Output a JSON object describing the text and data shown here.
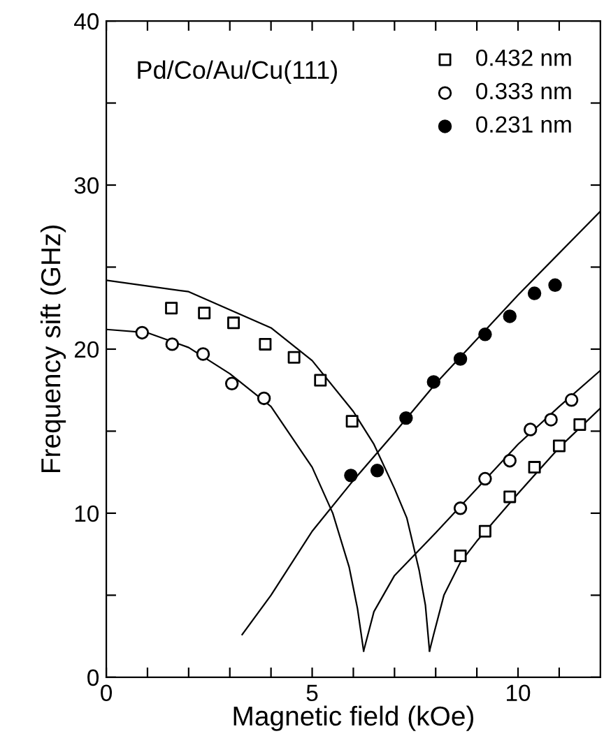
{
  "chart_data": {
    "type": "scatter",
    "xlabel": "Magnetic field (kOe)",
    "ylabel": "Frequency sift (GHz)",
    "xlim": [
      0,
      12
    ],
    "ylim": [
      0,
      40
    ],
    "xticks": [
      0,
      {
        "value": 1,
        "label": null
      },
      {
        "value": 2,
        "label": null
      },
      {
        "value": 3,
        "label": null
      },
      {
        "value": 4,
        "label": null
      },
      5,
      {
        "value": 6,
        "label": null
      },
      {
        "value": 7,
        "label": null
      },
      {
        "value": 8,
        "label": null
      },
      {
        "value": 9,
        "label": null
      },
      10,
      {
        "value": 11,
        "label": null
      }
    ],
    "yticks": [
      0,
      {
        "value": 5,
        "label": null
      },
      10,
      {
        "value": 15,
        "label": null
      },
      20,
      {
        "value": 25,
        "label": null
      },
      30,
      {
        "value": 35,
        "label": null
      },
      40
    ],
    "grid": false,
    "legend": "top right",
    "annotations": [
      "Pd/Co/Au/Cu(111)"
    ],
    "series": [
      {
        "name": "0.432 nm",
        "marker": "square",
        "color": "#ffffff",
        "x": [
          1.58,
          2.38,
          3.09,
          3.86,
          4.56,
          5.2,
          5.97,
          8.6,
          9.2,
          9.8,
          10.4,
          11.0,
          11.5
        ],
        "values": [
          22.5,
          22.2,
          21.6,
          20.3,
          19.5,
          18.1,
          15.6,
          7.4,
          8.9,
          11.0,
          12.8,
          14.1,
          15.4
        ]
      },
      {
        "name": "0.333 nm",
        "marker": "circle",
        "color": "#ffffff",
        "x": [
          0.87,
          1.6,
          2.35,
          3.05,
          3.83,
          8.6,
          9.2,
          9.8,
          10.3,
          10.8,
          11.3
        ],
        "values": [
          21.0,
          20.3,
          19.7,
          17.9,
          17.0,
          10.3,
          12.1,
          13.2,
          15.1,
          15.7,
          16.9
        ]
      },
      {
        "name": "0.231 nm",
        "marker": "circle",
        "color": "#000000",
        "x": [
          5.94,
          6.58,
          7.28,
          7.95,
          8.6,
          9.2,
          9.8,
          10.4,
          10.9
        ],
        "values": [
          12.3,
          12.6,
          15.8,
          18.0,
          19.4,
          20.9,
          22.0,
          23.4,
          23.9
        ]
      },
      {
        "type": "line",
        "marker": "none",
        "color": "#000000",
        "x": [
          0,
          2,
          4,
          5,
          6,
          6.5,
          7,
          7.3,
          7.6,
          7.75,
          7.85
        ],
        "values": [
          24.2,
          23.5,
          21.3,
          19.3,
          16.2,
          14.2,
          11.5,
          9.7,
          6.5,
          4.4,
          1.6
        ]
      },
      {
        "type": "line",
        "marker": "none",
        "color": "#000000",
        "x": [
          7.85,
          7.95,
          8.2,
          8.6,
          9,
          10,
          11,
          12
        ],
        "values": [
          1.6,
          2.6,
          5.0,
          7.0,
          8.3,
          11.2,
          14.0,
          16.4
        ]
      },
      {
        "type": "line",
        "marker": "none",
        "color": "#000000",
        "x": [
          0,
          1,
          2,
          2.5,
          3,
          4,
          5,
          5.5,
          5.9,
          6.1,
          6.25
        ],
        "values": [
          21.2,
          21.0,
          20.1,
          19.3,
          18.5,
          16.5,
          12.8,
          10.0,
          6.7,
          4.2,
          1.6
        ]
      },
      {
        "type": "line",
        "marker": "none",
        "color": "#000000",
        "x": [
          6.25,
          6.5,
          7,
          8,
          9,
          10,
          11,
          12
        ],
        "values": [
          1.6,
          4.0,
          6.2,
          8.8,
          11.5,
          14.2,
          16.5,
          18.7
        ]
      },
      {
        "type": "line",
        "marker": "none",
        "color": "#000000",
        "x": [
          3.3,
          4,
          5,
          6,
          7,
          8,
          10,
          12
        ],
        "values": [
          2.6,
          5.0,
          8.9,
          12.0,
          14.9,
          17.9,
          23.3,
          28.4
        ]
      }
    ]
  }
}
